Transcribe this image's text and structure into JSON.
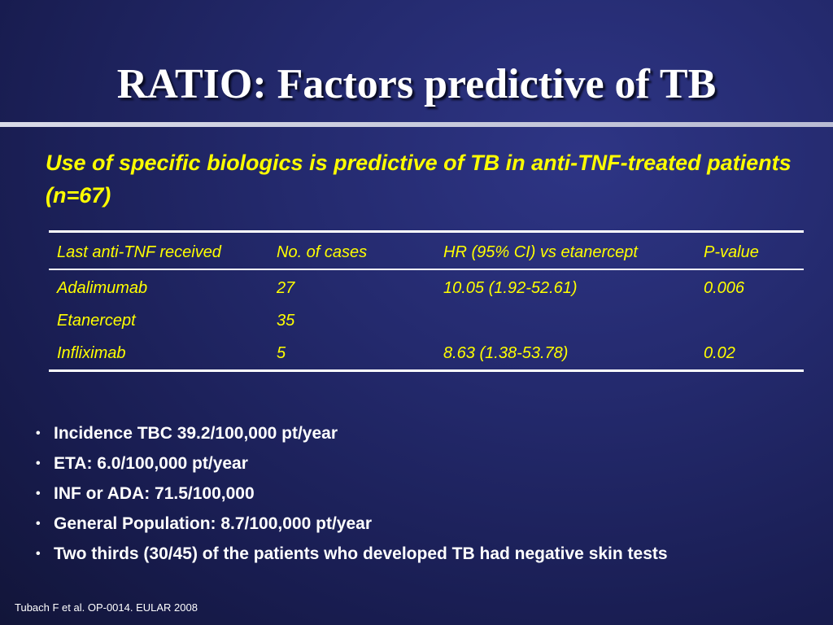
{
  "slide": {
    "title": "RATIO: Factors predictive of TB",
    "subtitle": "Use of specific biologics is predictive of TB in anti-TNF-treated patients (n=67)",
    "footnote": "Tubach F et al. OP-0014. EULAR 2008",
    "colors": {
      "background": "#242a6e",
      "title": "#ffffff",
      "subtitle": "#ffff00",
      "table_text": "#ffff00",
      "bullet_text": "#ffffff"
    }
  },
  "table": {
    "headers": [
      "Last anti-TNF received",
      "No. of cases",
      "HR (95% CI) vs etanercept",
      "P-value"
    ],
    "rows": [
      [
        "Adalimumab",
        "27",
        "10.05 (1.92-52.61)",
        "0.006"
      ],
      [
        "Etanercept",
        "35",
        "",
        ""
      ],
      [
        "Infliximab",
        "5",
        "8.63 (1.38-53.78)",
        "0.02"
      ]
    ]
  },
  "bullets": [
    "Incidence TBC 39.2/100,000 pt/year",
    "ETA: 6.0/100,000 pt/year",
    "INF or ADA: 71.5/100,000",
    "General Population: 8.7/100,000 pt/year",
    "Two thirds (30/45) of the patients who developed TB had negative skin tests"
  ],
  "bullet_symbol": "•"
}
